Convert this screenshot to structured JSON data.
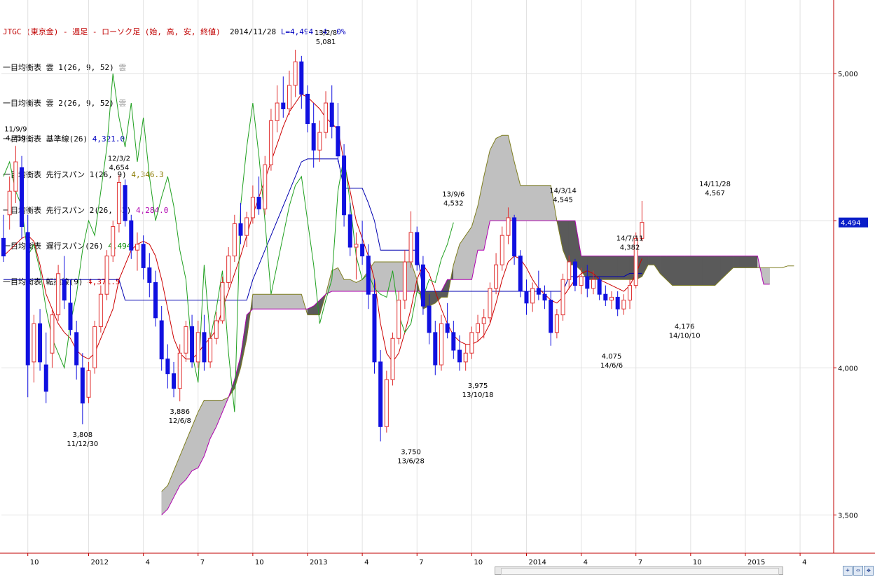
{
  "header": {
    "title": "JTGC (東京金) - 週足 - ローソク足 (始, 高, 安, 終値)",
    "date": "2014/11/28",
    "last": "L=4,494",
    "change": "-4",
    "pct": "0%"
  },
  "legend": [
    {
      "label": "一目均衡表 雲 1(26, 9, 52)",
      "value": "雲",
      "color": "#999999"
    },
    {
      "label": "一目均衡表 雲 2(26, 9, 52)",
      "value": "雲",
      "color": "#999999"
    },
    {
      "label": "一目均衡表 基準線(26)",
      "value": "4,321.0",
      "color": "#0000c0"
    },
    {
      "label": "一目均衡表 先行スパン 1(26, 9)",
      "value": "4,346.3",
      "color": "#8a7a00"
    },
    {
      "label": "一目均衡表 先行スパン 2(26, 52)",
      "value": "4,284.0",
      "color": "#b000b0"
    },
    {
      "label": "一目均衡表 遅行スパン(26)",
      "value": "4,494",
      "color": "#008800"
    },
    {
      "label": "一目均衡表 転換線(9)",
      "value": "4,371.5",
      "color": "#cc0000"
    }
  ],
  "chart_data": {
    "type": "candlestick",
    "ylim": [
      3370,
      5250
    ],
    "y_ticks": [
      {
        "value": 3500,
        "label": "3,500"
      },
      {
        "value": 4000,
        "label": "4,000"
      },
      {
        "value": 4500,
        "label": ""
      },
      {
        "value": 5000,
        "label": "5,000"
      }
    ],
    "last_price": {
      "value": 4494,
      "label": "4,494"
    },
    "x_ticks": [
      {
        "i": 4,
        "label": "10"
      },
      {
        "i": 14,
        "label": "2012"
      },
      {
        "i": 23,
        "label": "4"
      },
      {
        "i": 32,
        "label": "7"
      },
      {
        "i": 41,
        "label": "10"
      },
      {
        "i": 50,
        "label": "2013"
      },
      {
        "i": 59,
        "label": "4"
      },
      {
        "i": 68,
        "label": "7"
      },
      {
        "i": 77,
        "label": "10"
      },
      {
        "i": 86,
        "label": "2014"
      },
      {
        "i": 95,
        "label": "4"
      },
      {
        "i": 104,
        "label": "7"
      },
      {
        "i": 113,
        "label": "10"
      },
      {
        "i": 122,
        "label": "2015"
      },
      {
        "i": 131,
        "label": "4"
      }
    ],
    "annotations": [
      {
        "i": 2,
        "value": 4754,
        "date": "11/9/9",
        "price": "4,754",
        "pos": "above"
      },
      {
        "i": 13,
        "value": 3808,
        "date": "11/12/30",
        "price": "3,808",
        "pos": "below"
      },
      {
        "i": 19,
        "value": 4654,
        "date": "12/3/2",
        "price": "4,654",
        "pos": "above"
      },
      {
        "i": 29,
        "value": 3886,
        "date": "12/6/8",
        "price": "3,886",
        "pos": "below"
      },
      {
        "i": 53,
        "value": 5081,
        "date": "13/2/8",
        "price": "5,081",
        "pos": "above"
      },
      {
        "i": 67,
        "value": 3750,
        "date": "13/6/28",
        "price": "3,750",
        "pos": "below"
      },
      {
        "i": 74,
        "value": 4532,
        "date": "13/9/6",
        "price": "4,532",
        "pos": "above"
      },
      {
        "i": 78,
        "value": 3975,
        "date": "13/10/18",
        "price": "3,975",
        "pos": "below"
      },
      {
        "i": 92,
        "value": 4545,
        "date": "14/3/14",
        "price": "4,545",
        "pos": "above"
      },
      {
        "i": 100,
        "value": 4075,
        "date": "14/6/6",
        "price": "4,075",
        "pos": "below"
      },
      {
        "i": 103,
        "value": 4382,
        "date": "14/7/11",
        "price": "4,382",
        "pos": "above"
      },
      {
        "i": 112,
        "value": 4176,
        "date": "14/10/10",
        "price": "4,176",
        "pos": "below"
      },
      {
        "i": 117,
        "value": 4567,
        "date": "14/11/28",
        "price": "4,567",
        "pos": "above"
      }
    ],
    "candles": [
      [
        4440,
        4520,
        4360,
        4380
      ],
      [
        4520,
        4650,
        4470,
        4600
      ],
      [
        4600,
        4754,
        4560,
        4700
      ],
      [
        4680,
        4720,
        4440,
        4480
      ],
      [
        4460,
        4520,
        3900,
        4010
      ],
      [
        4020,
        4180,
        3950,
        4150
      ],
      [
        4150,
        4200,
        3990,
        4020
      ],
      [
        4010,
        4120,
        3880,
        3920
      ],
      [
        4050,
        4200,
        4000,
        4180
      ],
      [
        4180,
        4350,
        4160,
        4320
      ],
      [
        4300,
        4380,
        4200,
        4230
      ],
      [
        4220,
        4300,
        4110,
        4130
      ],
      [
        4120,
        4160,
        3960,
        4010
      ],
      [
        4000,
        4050,
        3808,
        3880
      ],
      [
        3900,
        4020,
        3880,
        3990
      ],
      [
        4000,
        4160,
        3980,
        4140
      ],
      [
        4140,
        4280,
        4120,
        4250
      ],
      [
        4250,
        4400,
        4230,
        4380
      ],
      [
        4380,
        4500,
        4360,
        4480
      ],
      [
        4490,
        4654,
        4460,
        4630
      ],
      [
        4620,
        4640,
        4480,
        4500
      ],
      [
        4500,
        4520,
        4370,
        4400
      ],
      [
        4400,
        4460,
        4330,
        4420
      ],
      [
        4420,
        4450,
        4300,
        4340
      ],
      [
        4340,
        4390,
        4240,
        4290
      ],
      [
        4290,
        4330,
        4140,
        4170
      ],
      [
        4160,
        4210,
        3990,
        4030
      ],
      [
        4030,
        4080,
        3930,
        3980
      ],
      [
        3980,
        4020,
        3900,
        3930
      ],
      [
        3930,
        4080,
        3886,
        4050
      ],
      [
        4050,
        4160,
        4020,
        4140
      ],
      [
        4140,
        4180,
        4000,
        4020
      ],
      [
        4020,
        4160,
        4000,
        4120
      ],
      [
        4120,
        4180,
        3990,
        4020
      ],
      [
        4020,
        4120,
        4000,
        4100
      ],
      [
        4100,
        4190,
        4080,
        4160
      ],
      [
        4160,
        4310,
        4150,
        4290
      ],
      [
        4290,
        4410,
        4270,
        4380
      ],
      [
        4380,
        4520,
        4360,
        4490
      ],
      [
        4490,
        4560,
        4420,
        4450
      ],
      [
        4450,
        4530,
        4410,
        4510
      ],
      [
        4510,
        4620,
        4490,
        4580
      ],
      [
        4580,
        4650,
        4520,
        4540
      ],
      [
        4540,
        4720,
        4520,
        4690
      ],
      [
        4690,
        4880,
        4670,
        4840
      ],
      [
        4840,
        4960,
        4800,
        4900
      ],
      [
        4900,
        4990,
        4850,
        4880
      ],
      [
        4880,
        5010,
        4860,
        4960
      ],
      [
        4960,
        5081,
        4920,
        5040
      ],
      [
        5040,
        5060,
        4880,
        4930
      ],
      [
        4930,
        4960,
        4800,
        4830
      ],
      [
        4830,
        4900,
        4680,
        4740
      ],
      [
        4740,
        4840,
        4700,
        4800
      ],
      [
        4800,
        4940,
        4780,
        4900
      ],
      [
        4900,
        4960,
        4780,
        4820
      ],
      [
        4820,
        4900,
        4700,
        4720
      ],
      [
        4720,
        4760,
        4480,
        4520
      ],
      [
        4520,
        4560,
        4380,
        4410
      ],
      [
        4410,
        4460,
        4300,
        4420
      ],
      [
        4420,
        4500,
        4350,
        4380
      ],
      [
        4380,
        4420,
        4200,
        4250
      ],
      [
        4250,
        4300,
        3980,
        4020
      ],
      [
        4020,
        4060,
        3750,
        3800
      ],
      [
        3800,
        3990,
        3780,
        3960
      ],
      [
        3960,
        4120,
        3940,
        4100
      ],
      [
        4100,
        4260,
        4080,
        4230
      ],
      [
        4230,
        4400,
        4200,
        4360
      ],
      [
        4360,
        4532,
        4340,
        4460
      ],
      [
        4460,
        4480,
        4330,
        4350
      ],
      [
        4350,
        4380,
        4180,
        4210
      ],
      [
        4210,
        4250,
        4080,
        4120
      ],
      [
        4120,
        4160,
        3975,
        4010
      ],
      [
        4010,
        4180,
        3990,
        4150
      ],
      [
        4150,
        4220,
        4100,
        4120
      ],
      [
        4120,
        4160,
        4030,
        4060
      ],
      [
        4060,
        4110,
        3990,
        4020
      ],
      [
        4020,
        4080,
        3990,
        4050
      ],
      [
        4050,
        4140,
        4030,
        4120
      ],
      [
        4120,
        4180,
        4090,
        4150
      ],
      [
        4150,
        4200,
        4100,
        4170
      ],
      [
        4170,
        4290,
        4150,
        4270
      ],
      [
        4270,
        4390,
        4250,
        4350
      ],
      [
        4350,
        4480,
        4330,
        4450
      ],
      [
        4450,
        4545,
        4420,
        4510
      ],
      [
        4510,
        4520,
        4350,
        4380
      ],
      [
        4380,
        4400,
        4240,
        4260
      ],
      [
        4260,
        4300,
        4180,
        4220
      ],
      [
        4220,
        4290,
        4190,
        4270
      ],
      [
        4270,
        4330,
        4230,
        4250
      ],
      [
        4250,
        4280,
        4200,
        4230
      ],
      [
        4230,
        4260,
        4075,
        4120
      ],
      [
        4120,
        4200,
        4100,
        4180
      ],
      [
        4180,
        4320,
        4160,
        4300
      ],
      [
        4300,
        4382,
        4270,
        4360
      ],
      [
        4360,
        4370,
        4260,
        4280
      ],
      [
        4280,
        4340,
        4250,
        4310
      ],
      [
        4310,
        4350,
        4240,
        4270
      ],
      [
        4270,
        4330,
        4250,
        4300
      ],
      [
        4300,
        4310,
        4230,
        4250
      ],
      [
        4250,
        4280,
        4210,
        4230
      ],
      [
        4230,
        4260,
        4200,
        4240
      ],
      [
        4240,
        4260,
        4176,
        4200
      ],
      [
        4200,
        4250,
        4180,
        4230
      ],
      [
        4230,
        4300,
        4200,
        4280
      ],
      [
        4280,
        4460,
        4270,
        4440
      ],
      [
        4440,
        4567,
        4430,
        4494
      ]
    ],
    "tenkan": [
      4380,
      4400,
      4420,
      4440,
      4450,
      4430,
      4350,
      4250,
      4200,
      4150,
      4120,
      4100,
      4060,
      4040,
      4030,
      4050,
      4100,
      4150,
      4200,
      4300,
      4350,
      4400,
      4420,
      4430,
      4420,
      4380,
      4300,
      4200,
      4100,
      4050,
      4030,
      4030,
      4050,
      4080,
      4100,
      4130,
      4200,
      4260,
      4320,
      4380,
      4450,
      4520,
      4580,
      4640,
      4700,
      4760,
      4820,
      4870,
      4900,
      4930,
      4920,
      4900,
      4880,
      4850,
      4830,
      4810,
      4700,
      4600,
      4500,
      4440,
      4380,
      4300,
      4150,
      4050,
      4020,
      4050,
      4120,
      4200,
      4300,
      4350,
      4320,
      4260,
      4200,
      4150,
      4110,
      4090,
      4080,
      4080,
      4090,
      4110,
      4150,
      4220,
      4300,
      4360,
      4380,
      4370,
      4340,
      4300,
      4270,
      4250,
      4230,
      4220,
      4240,
      4270,
      4300,
      4320,
      4330,
      4320,
      4300,
      4290,
      4280,
      4270,
      4260,
      4280,
      4320,
      4371.5
    ],
    "kijun": [
      4300,
      4300,
      4300,
      4300,
      4300,
      4300,
      4300,
      4300,
      4300,
      4300,
      4300,
      4300,
      4300,
      4300,
      4300,
      4300,
      4300,
      4300,
      4300,
      4300,
      4230,
      4230,
      4230,
      4230,
      4230,
      4230,
      4230,
      4230,
      4230,
      4230,
      4230,
      4230,
      4230,
      4230,
      4230,
      4230,
      4230,
      4230,
      4230,
      4230,
      4230,
      4300,
      4350,
      4400,
      4450,
      4500,
      4550,
      4600,
      4650,
      4700,
      4710,
      4710,
      4710,
      4710,
      4710,
      4710,
      4610,
      4610,
      4610,
      4610,
      4560,
      4500,
      4400,
      4400,
      4400,
      4400,
      4400,
      4400,
      4400,
      4260,
      4260,
      4260,
      4260,
      4260,
      4260,
      4260,
      4260,
      4260,
      4260,
      4260,
      4260,
      4260,
      4260,
      4260,
      4260,
      4260,
      4260,
      4260,
      4260,
      4260,
      4260,
      4260,
      4260,
      4310,
      4310,
      4310,
      4310,
      4310,
      4310,
      4310,
      4310,
      4310,
      4310,
      4321,
      4321,
      4321
    ],
    "span_a": [
      null,
      null,
      null,
      null,
      null,
      null,
      null,
      null,
      null,
      null,
      null,
      null,
      null,
      null,
      null,
      null,
      null,
      null,
      null,
      null,
      null,
      null,
      null,
      null,
      null,
      null,
      3580,
      3600,
      3650,
      3700,
      3750,
      3800,
      3850,
      3890,
      3890,
      3890,
      3890,
      3900,
      3930,
      4000,
      4100,
      4250,
      4250,
      4250,
      4250,
      4250,
      4250,
      4250,
      4250,
      4250,
      4180,
      4180,
      4180,
      4250,
      4330,
      4340,
      4300,
      4300,
      4290,
      4300,
      4330,
      4360,
      4360,
      4360,
      4360,
      4360,
      4360,
      4360,
      4300,
      4200,
      4210,
      4220,
      4240,
      4240,
      4350,
      4420,
      4450,
      4480,
      4550,
      4650,
      4740,
      4780,
      4790,
      4790,
      4700,
      4620,
      4620,
      4620,
      4620,
      4620,
      4620,
      4500,
      4400,
      4350,
      4350,
      4330,
      4300,
      4300,
      4300,
      4300,
      4300,
      4300,
      4300,
      4300,
      4300,
      4310,
      4350,
      4350,
      4320,
      4300,
      4280,
      4280,
      4280,
      4280,
      4280,
      4280,
      4280,
      4280,
      4300,
      4320,
      4340,
      4340,
      4340,
      4340,
      4340,
      4340,
      4340,
      4340,
      4340,
      4346.3,
      4346.3
    ],
    "span_b": [
      null,
      null,
      null,
      null,
      null,
      null,
      null,
      null,
      null,
      null,
      null,
      null,
      null,
      null,
      null,
      null,
      null,
      null,
      null,
      null,
      null,
      null,
      null,
      null,
      null,
      null,
      3500,
      3520,
      3560,
      3600,
      3620,
      3650,
      3660,
      3700,
      3760,
      3800,
      3850,
      3900,
      3960,
      4040,
      4180,
      4200,
      4200,
      4200,
      4200,
      4200,
      4200,
      4200,
      4200,
      4200,
      4200,
      4210,
      4230,
      4250,
      4260,
      4260,
      4260,
      4260,
      4260,
      4260,
      4260,
      4260,
      4260,
      4260,
      4260,
      4260,
      4260,
      4260,
      4260,
      4260,
      4260,
      4260,
      4260,
      4300,
      4300,
      4300,
      4300,
      4300,
      4400,
      4400,
      4500,
      4500,
      4500,
      4500,
      4500,
      4500,
      4500,
      4500,
      4500,
      4500,
      4500,
      4500,
      4500,
      4500,
      4500,
      4380,
      4380,
      4380,
      4380,
      4380,
      4380,
      4380,
      4380,
      4380,
      4380,
      4380,
      4380,
      4380,
      4380,
      4380,
      4380,
      4380,
      4380,
      4380,
      4380,
      4380,
      4380,
      4380,
      4380,
      4380,
      4380,
      4380,
      4380,
      4380,
      4380,
      4284,
      4284
    ],
    "chikou": [
      4650,
      4700,
      4600,
      4550,
      4380,
      4420,
      4330,
      4200,
      4100,
      4050,
      4000,
      4150,
      4250,
      4400,
      4500,
      4450,
      4600,
      4750,
      5000,
      4850,
      4750,
      4900,
      4700,
      4850,
      4650,
      4500,
      4580,
      4650,
      4550,
      4400,
      4300,
      4050,
      3950,
      4350,
      4100,
      4200,
      4330,
      4050,
      3850,
      4550,
      4750,
      4900,
      4720,
      4500,
      4250,
      4350,
      4450,
      4550,
      4620,
      4650,
      4500,
      4350,
      4150,
      4230,
      4300,
      4600,
      4720,
      4560,
      4380,
      4300,
      4320,
      4270,
      4250,
      4240,
      4330,
      4180,
      4120,
      4150,
      4260,
      4240,
      4300,
      4290,
      4370,
      4420,
      4494
    ]
  }
}
